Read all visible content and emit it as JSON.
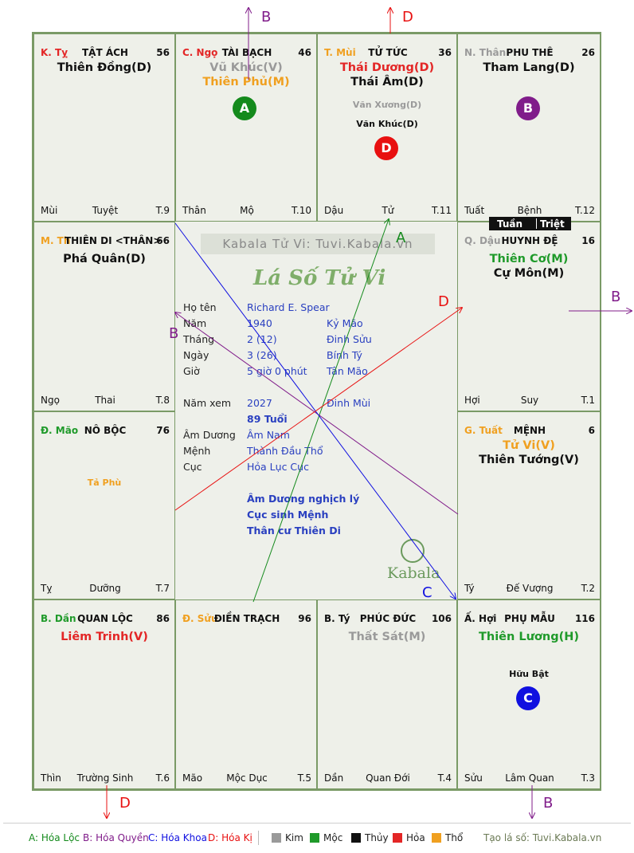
{
  "palaces": [
    {
      "code": "K. Tỵ",
      "code_color": "#e32626",
      "name": "TẬT ÁCH",
      "num": "56",
      "bottom_left": "Mùi",
      "bottom_center": "Tuyệt",
      "bottom_right": "T.9",
      "stars": [
        {
          "text": "Thiên Đồng(D)",
          "color": "#111111",
          "size": "big"
        }
      ]
    },
    {
      "code": "C. Ngọ",
      "code_color": "#e32626",
      "name": "TÀI BẠCH",
      "num": "46",
      "bottom_left": "Thân",
      "bottom_center": "Mộ",
      "bottom_right": "T.10",
      "stars": [
        {
          "text": "Vũ Khúc(V)",
          "color": "#9a9a9a",
          "size": "big"
        },
        {
          "text": "Thiên Phủ(M)",
          "color": "#f0a020",
          "size": "big"
        }
      ]
    },
    {
      "code": "T. Mùi",
      "code_color": "#f0a020",
      "name": "TỬ TỨC",
      "num": "36",
      "bottom_left": "Dậu",
      "bottom_center": "Tử",
      "bottom_right": "T.11",
      "stars": [
        {
          "text": "Thái Dương(D)",
          "color": "#e32626",
          "size": "big"
        },
        {
          "text": "Thái Âm(D)",
          "color": "#111111",
          "size": "big"
        },
        {
          "text": "Văn Xương(D)",
          "color": "#9a9a9a",
          "size": "xs"
        },
        {
          "text": "Văn Khúc(D)",
          "color": "#111111",
          "size": "xs"
        }
      ]
    },
    {
      "code": "N. Thân",
      "code_color": "#9a9a9a",
      "name": "PHU THÊ",
      "num": "26",
      "bottom_left": "Tuất",
      "bottom_center": "Bệnh",
      "bottom_right": "T.12",
      "stars": [
        {
          "text": "Tham Lang(D)",
          "color": "#111111",
          "size": "big"
        }
      ]
    },
    {
      "code": "M. Th",
      "code_color": "#f0a020",
      "name": "THIÊN DI <THÂN>",
      "num": "66",
      "bottom_left": "Ngọ",
      "bottom_center": "Thai",
      "bottom_right": "T.8",
      "stars": [
        {
          "text": "Phá Quân(D)",
          "color": "#111111",
          "size": "big"
        }
      ]
    },
    {
      "code": "Q. Dậu",
      "code_color": "#9a9a9a",
      "name": "HUYNH ĐỆ",
      "num": "16",
      "bottom_left": "Hợi",
      "bottom_center": "Suy",
      "bottom_right": "T.1",
      "stars": [
        {
          "text": "Thiên Cơ(M)",
          "color": "#1f9a2a",
          "size": "big"
        },
        {
          "text": "Cự Môn(M)",
          "color": "#111111",
          "size": "big"
        }
      ]
    },
    {
      "code": "Đ. Mão",
      "code_color": "#1f9a2a",
      "name": "NÔ BỘC",
      "num": "76",
      "bottom_left": "Tỵ",
      "bottom_center": "Dưỡng",
      "bottom_right": "T.7",
      "stars": [
        {
          "text": "Tả Phù",
          "color": "#f0a020",
          "size": "xs"
        }
      ]
    },
    {
      "code": "G. Tuất",
      "code_color": "#f0a020",
      "name": "MỆNH",
      "num": "6",
      "bottom_left": "Tý",
      "bottom_center": "Đế Vượng",
      "bottom_right": "T.2",
      "stars": [
        {
          "text": "Tử Vi(V)",
          "color": "#f0a020",
          "size": "big"
        },
        {
          "text": "Thiên Tướng(V)",
          "color": "#111111",
          "size": "big"
        }
      ]
    },
    {
      "code": "B. Dần",
      "code_color": "#1f9a2a",
      "name": "QUAN LỘC",
      "num": "86",
      "bottom_left": "Thìn",
      "bottom_center": "Trường Sinh",
      "bottom_right": "T.6",
      "stars": [
        {
          "text": "Liêm Trinh(V)",
          "color": "#e32626",
          "size": "big"
        }
      ]
    },
    {
      "code": "Đ. Sửu",
      "code_color": "#f0a020",
      "name": "ĐIỀN TRẠCH",
      "num": "96",
      "bottom_left": "Mão",
      "bottom_center": "Mộc Dục",
      "bottom_right": "T.5",
      "stars": []
    },
    {
      "code": "B. Tý",
      "code_color": "#111111",
      "name": "PHÚC ĐỨC",
      "num": "106",
      "bottom_left": "Dần",
      "bottom_center": "Quan Đới",
      "bottom_right": "T.4",
      "stars": [
        {
          "text": "Thất Sát(M)",
          "color": "#9a9a9a",
          "size": "big"
        }
      ]
    },
    {
      "code": "Ấ. Hợi",
      "code_color": "#111111",
      "name": "PHỤ MẪU",
      "num": "116",
      "bottom_left": "Sửu",
      "bottom_center": "Lâm Quan",
      "bottom_right": "T.3",
      "stars": [
        {
          "text": "Thiên Lương(H)",
          "color": "#1f9a2a",
          "size": "big"
        },
        {
          "text": "Hữu Bật",
          "color": "#111111",
          "size": "xs"
        }
      ]
    }
  ],
  "markers": {
    "A": {
      "label": "A",
      "color": "#148a1c"
    },
    "B": {
      "label": "B",
      "color": "#801c8a"
    },
    "C": {
      "label": "C",
      "color": "#1010e0"
    },
    "D": {
      "label": "D",
      "color": "#e81010"
    }
  },
  "tuan_triet": {
    "tuan": "Tuần",
    "triet": "Triệt"
  },
  "watermark": "Kabala Tử Vi: Tuvi.Kabala.vn",
  "center_title": "Lá Số Tử Vi",
  "brand": "Kabala",
  "info": {
    "ho_ten_label": "Họ tên",
    "ho_ten": "Richard E. Spear",
    "nam_label": "Năm",
    "nam": "1940",
    "nam_can": "Kỷ Mão",
    "thang_label": "Tháng",
    "thang": "2  (12)",
    "thang_can": "Đinh Sửu",
    "ngay_label": "Ngày",
    "ngay": "3  (26)",
    "ngay_can": "Bính Tý",
    "gio_label": "Giờ",
    "gio": "5 giờ 0 phút",
    "gio_can": "Tân Mão",
    "nam_xem_label": "Năm xem",
    "nam_xem": "2027",
    "nam_xem_can": "Đinh Mùi",
    "tuoi": "89 Tuổi",
    "am_duong_label": "Âm Dương",
    "am_duong": "Âm Nam",
    "menh_label": "Mệnh",
    "menh": "Thành Đầu Thổ",
    "cuc_label": "Cục",
    "cuc": "Hỏa Lục Cục",
    "note1": "Âm Dương nghịch lý",
    "note2": "Cục sinh Mệnh",
    "note3": "Thân cư Thiên Di"
  },
  "arrow_labels": {
    "top_b": "B",
    "top_d": "D",
    "right_b": "B",
    "bottom_d": "D",
    "bottom_b": "B",
    "line_a": "A",
    "line_b": "B",
    "line_c": "C",
    "line_d": "D"
  },
  "legend": {
    "a": "A: Hóa Lộc",
    "b": "B: Hóa Quyền",
    "c": "C: Hóa Khoa",
    "d": "D: Hóa Kị",
    "kim": "Kim",
    "moc": "Mộc",
    "thuy": "Thủy",
    "hoa": "Hỏa",
    "tho": "Thổ",
    "site": "Tạo lá số: Tuvi.Kabala.vn"
  },
  "colors": {
    "kim": "#9a9a9a",
    "moc": "#1f9a2a",
    "thuy": "#111111",
    "hoa": "#e32626",
    "tho": "#f0a020"
  }
}
